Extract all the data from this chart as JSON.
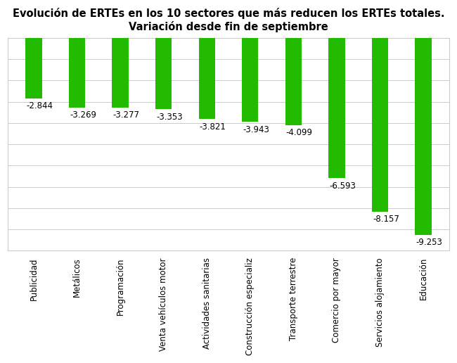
{
  "title": "Evolución de ERTEs en los 10 sectores que más reducen los ERTEs totales.\nVariación desde fin de septiembre",
  "categories": [
    "Publicidad",
    "Metálicos",
    "Programación",
    "Venta vehículos motor",
    "Actividades sanitarias",
    "Construcción especializ",
    "Transporte terrestre",
    "Comercio por mayor",
    "Servicios alojamiento",
    "Educación"
  ],
  "values": [
    -2844,
    -3269,
    -3277,
    -3353,
    -3821,
    -3943,
    -4099,
    -6593,
    -8157,
    -9253
  ],
  "value_labels": [
    "-2.844",
    "-3.269",
    "-3.277",
    "-3.353",
    "-3.821",
    "-3.943",
    "-4.099",
    "-6.593",
    "-8.157",
    "-9.253"
  ],
  "bar_color": "#22bb00",
  "background_color": "#ffffff",
  "ylim_min": -10000,
  "ylim_max": 0,
  "title_fontsize": 10.5,
  "label_fontsize": 8.5,
  "tick_fontsize": 8.5,
  "grid_color": "#cccccc",
  "bar_width": 0.38
}
